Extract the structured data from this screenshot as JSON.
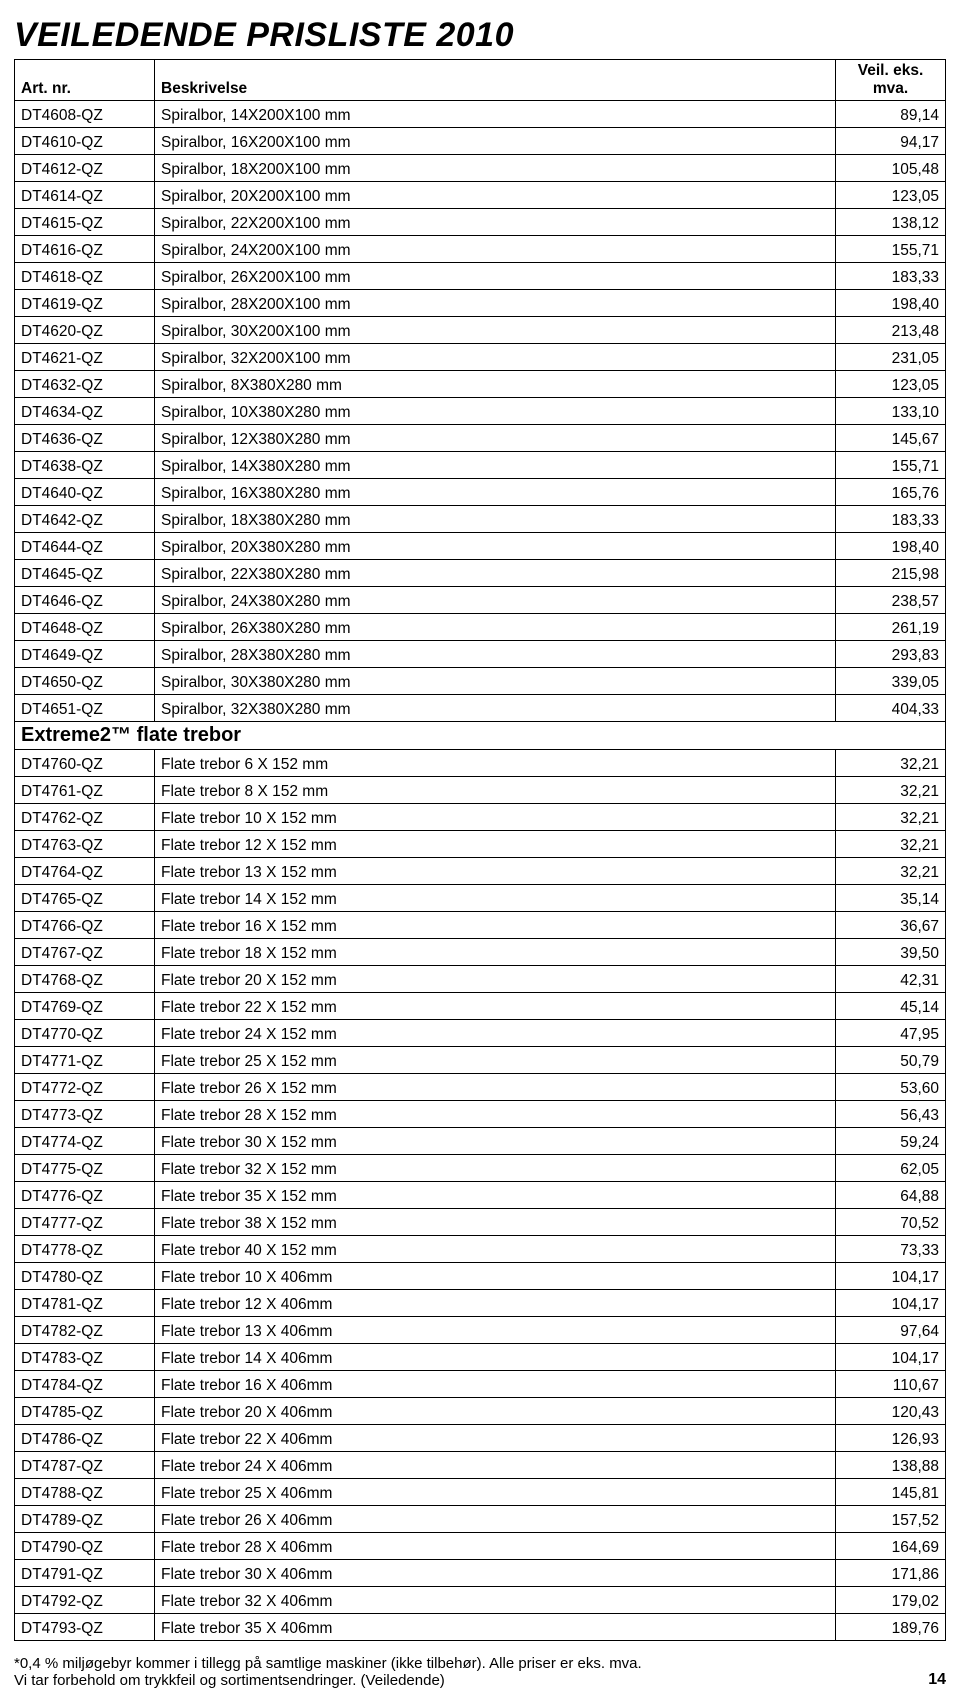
{
  "title": "VEILEDENDE PRISLISTE 2010",
  "header": {
    "col1": "Art. nr.",
    "col2": "Beskrivelse",
    "col3_line1": "Veil. eks.",
    "col3_line2": "mva."
  },
  "rows": [
    {
      "code": "DT4608-QZ",
      "desc": "Spiralbor, 14X200X100 mm",
      "price": "89,14"
    },
    {
      "code": "DT4610-QZ",
      "desc": "Spiralbor, 16X200X100 mm",
      "price": "94,17"
    },
    {
      "code": "DT4612-QZ",
      "desc": "Spiralbor, 18X200X100 mm",
      "price": "105,48"
    },
    {
      "code": "DT4614-QZ",
      "desc": "Spiralbor, 20X200X100 mm",
      "price": "123,05"
    },
    {
      "code": "DT4615-QZ",
      "desc": "Spiralbor, 22X200X100 mm",
      "price": "138,12"
    },
    {
      "code": "DT4616-QZ",
      "desc": "Spiralbor, 24X200X100 mm",
      "price": "155,71"
    },
    {
      "code": "DT4618-QZ",
      "desc": "Spiralbor, 26X200X100 mm",
      "price": "183,33"
    },
    {
      "code": "DT4619-QZ",
      "desc": "Spiralbor, 28X200X100 mm",
      "price": "198,40"
    },
    {
      "code": "DT4620-QZ",
      "desc": "Spiralbor, 30X200X100 mm",
      "price": "213,48"
    },
    {
      "code": "DT4621-QZ",
      "desc": "Spiralbor, 32X200X100 mm",
      "price": "231,05"
    },
    {
      "code": "DT4632-QZ",
      "desc": "Spiralbor,  8X380X280 mm",
      "price": "123,05"
    },
    {
      "code": "DT4634-QZ",
      "desc": "Spiralbor, 10X380X280 mm",
      "price": "133,10"
    },
    {
      "code": "DT4636-QZ",
      "desc": "Spiralbor, 12X380X280 mm",
      "price": "145,67"
    },
    {
      "code": "DT4638-QZ",
      "desc": "Spiralbor, 14X380X280 mm",
      "price": "155,71"
    },
    {
      "code": "DT4640-QZ",
      "desc": "Spiralbor, 16X380X280 mm",
      "price": "165,76"
    },
    {
      "code": "DT4642-QZ",
      "desc": "Spiralbor, 18X380X280 mm",
      "price": "183,33"
    },
    {
      "code": "DT4644-QZ",
      "desc": "Spiralbor, 20X380X280 mm",
      "price": "198,40"
    },
    {
      "code": "DT4645-QZ",
      "desc": "Spiralbor, 22X380X280 mm",
      "price": "215,98"
    },
    {
      "code": "DT4646-QZ",
      "desc": "Spiralbor, 24X380X280 mm",
      "price": "238,57"
    },
    {
      "code": "DT4648-QZ",
      "desc": "Spiralbor, 26X380X280 mm",
      "price": "261,19"
    },
    {
      "code": "DT4649-QZ",
      "desc": "Spiralbor, 28X380X280 mm",
      "price": "293,83"
    },
    {
      "code": "DT4650-QZ",
      "desc": "Spiralbor, 30X380X280 mm",
      "price": "339,05"
    },
    {
      "code": "DT4651-QZ",
      "desc": "Spiralbor, 32X380X280 mm",
      "price": "404,33"
    }
  ],
  "section": "Extreme2™ flate trebor",
  "rows2": [
    {
      "code": "DT4760-QZ",
      "desc": "Flate trebor 6 X 152 mm",
      "price": "32,21"
    },
    {
      "code": "DT4761-QZ",
      "desc": "Flate trebor  8 X 152 mm",
      "price": "32,21"
    },
    {
      "code": "DT4762-QZ",
      "desc": "Flate trebor 10 X 152 mm",
      "price": "32,21"
    },
    {
      "code": "DT4763-QZ",
      "desc": "Flate trebor 12 X 152 mm",
      "price": "32,21"
    },
    {
      "code": "DT4764-QZ",
      "desc": "Flate trebor 13 X 152 mm",
      "price": "32,21"
    },
    {
      "code": "DT4765-QZ",
      "desc": "Flate trebor 14 X 152 mm",
      "price": "35,14"
    },
    {
      "code": "DT4766-QZ",
      "desc": "Flate trebor 16 X 152 mm",
      "price": "36,67"
    },
    {
      "code": "DT4767-QZ",
      "desc": "Flate trebor 18 X 152 mm",
      "price": "39,50"
    },
    {
      "code": "DT4768-QZ",
      "desc": "Flate trebor 20 X 152 mm",
      "price": "42,31"
    },
    {
      "code": "DT4769-QZ",
      "desc": "Flate trebor 22 X 152 mm",
      "price": "45,14"
    },
    {
      "code": "DT4770-QZ",
      "desc": "Flate trebor 24 X 152 mm",
      "price": "47,95"
    },
    {
      "code": "DT4771-QZ",
      "desc": "Flate trebor 25 X 152 mm",
      "price": "50,79"
    },
    {
      "code": "DT4772-QZ",
      "desc": "Flate trebor 26 X 152 mm",
      "price": "53,60"
    },
    {
      "code": "DT4773-QZ",
      "desc": "Flate trebor 28 X 152 mm",
      "price": "56,43"
    },
    {
      "code": "DT4774-QZ",
      "desc": "Flate trebor 30 X 152 mm",
      "price": "59,24"
    },
    {
      "code": "DT4775-QZ",
      "desc": "Flate trebor 32 X 152 mm",
      "price": "62,05"
    },
    {
      "code": "DT4776-QZ",
      "desc": "Flate trebor 35 X 152 mm",
      "price": "64,88"
    },
    {
      "code": "DT4777-QZ",
      "desc": "Flate trebor 38 X 152 mm",
      "price": "70,52"
    },
    {
      "code": "DT4778-QZ",
      "desc": "Flate trebor 40 X 152 mm",
      "price": "73,33"
    },
    {
      "code": "DT4780-QZ",
      "desc": "Flate trebor 10 X 406mm",
      "price": "104,17"
    },
    {
      "code": "DT4781-QZ",
      "desc": "Flate trebor 12 X 406mm",
      "price": "104,17"
    },
    {
      "code": "DT4782-QZ",
      "desc": "Flate trebor 13 X 406mm",
      "price": "97,64"
    },
    {
      "code": "DT4783-QZ",
      "desc": "Flate trebor 14 X 406mm",
      "price": "104,17"
    },
    {
      "code": "DT4784-QZ",
      "desc": "Flate trebor 16 X 406mm",
      "price": "110,67"
    },
    {
      "code": "DT4785-QZ",
      "desc": "Flate trebor 20 X 406mm",
      "price": "120,43"
    },
    {
      "code": "DT4786-QZ",
      "desc": "Flate trebor 22 X 406mm",
      "price": "126,93"
    },
    {
      "code": "DT4787-QZ",
      "desc": "Flate trebor 24 X 406mm",
      "price": "138,88"
    },
    {
      "code": "DT4788-QZ",
      "desc": "Flate trebor 25 X 406mm",
      "price": "145,81"
    },
    {
      "code": "DT4789-QZ",
      "desc": "Flate trebor 26 X 406mm",
      "price": "157,52"
    },
    {
      "code": "DT4790-QZ",
      "desc": "Flate trebor 28 X 406mm",
      "price": "164,69"
    },
    {
      "code": "DT4791-QZ",
      "desc": "Flate trebor 30 X 406mm",
      "price": "171,86"
    },
    {
      "code": "DT4792-QZ",
      "desc": "Flate trebor 32 X 406mm",
      "price": "179,02"
    },
    {
      "code": "DT4793-QZ",
      "desc": "Flate trebor 35 X 406mm",
      "price": "189,76"
    }
  ],
  "footer_line1": "*0,4 % miljøgebyr kommer i tillegg på samtlige maskiner (ikke tilbehør). Alle priser er eks. mva.",
  "footer_line2": "Vi tar forbehold om trykkfeil og sortimentsendringer. (Veiledende)",
  "page_number": "14"
}
